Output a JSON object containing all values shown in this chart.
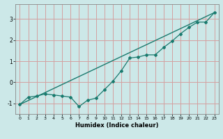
{
  "title": "",
  "xlabel": "Humidex (Indice chaleur)",
  "ylabel": "",
  "bg_color": "#cce8e8",
  "line_color": "#1a7a6e",
  "grid_color": "#d4a0a0",
  "xlim": [
    -0.5,
    23.5
  ],
  "ylim": [
    -1.5,
    3.7
  ],
  "yticks": [
    -1,
    0,
    1,
    2,
    3
  ],
  "xticks": [
    0,
    1,
    2,
    3,
    4,
    5,
    6,
    7,
    8,
    9,
    10,
    11,
    12,
    13,
    14,
    15,
    16,
    17,
    18,
    19,
    20,
    21,
    22,
    23
  ],
  "data_x": [
    0,
    1,
    2,
    3,
    4,
    5,
    6,
    7,
    8,
    9,
    10,
    11,
    12,
    13,
    14,
    15,
    16,
    17,
    18,
    19,
    20,
    21,
    22,
    23
  ],
  "data_y": [
    -1.05,
    -0.7,
    -0.65,
    -0.55,
    -0.6,
    -0.65,
    -0.7,
    -1.15,
    -0.85,
    -0.75,
    -0.35,
    0.05,
    0.55,
    1.15,
    1.2,
    1.3,
    1.3,
    1.65,
    1.95,
    2.3,
    2.6,
    2.85,
    2.85,
    3.3
  ],
  "trend_x": [
    0,
    23
  ],
  "trend_y": [
    -1.05,
    3.3
  ]
}
